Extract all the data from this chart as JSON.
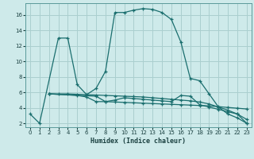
{
  "bg_color": "#ceeaea",
  "grid_color": "#aacfcf",
  "line_color": "#1a6e6e",
  "xlabel": "Humidex (Indice chaleur)",
  "xlim": [
    -0.5,
    23.5
  ],
  "ylim": [
    1.5,
    17.5
  ],
  "yticks": [
    2,
    4,
    6,
    8,
    10,
    12,
    14,
    16
  ],
  "xticks": [
    0,
    1,
    2,
    3,
    4,
    5,
    6,
    7,
    8,
    9,
    10,
    11,
    12,
    13,
    14,
    15,
    16,
    17,
    18,
    19,
    20,
    21,
    22,
    23
  ],
  "lines": [
    {
      "x": [
        0,
        1,
        3,
        4,
        5,
        6,
        7,
        8,
        9,
        10,
        11,
        12,
        13,
        14,
        15,
        16,
        17,
        18,
        19,
        20,
        21,
        22,
        23
      ],
      "y": [
        3.2,
        2.0,
        13.0,
        13.0,
        7.0,
        5.7,
        6.5,
        8.7,
        16.3,
        16.3,
        16.6,
        16.8,
        16.7,
        16.3,
        15.4,
        12.5,
        7.8,
        7.5,
        5.8,
        4.1,
        3.2,
        2.7,
        2.0
      ]
    },
    {
      "x": [
        2,
        3,
        4,
        5,
        6,
        7,
        8,
        9,
        10,
        11,
        12,
        13,
        14,
        15,
        16,
        17,
        18,
        19,
        20,
        21,
        22,
        23
      ],
      "y": [
        5.8,
        5.8,
        5.8,
        5.75,
        5.7,
        5.65,
        5.6,
        5.55,
        5.5,
        5.45,
        5.4,
        5.3,
        5.2,
        5.1,
        5.0,
        4.9,
        4.75,
        4.5,
        4.1,
        3.7,
        3.2,
        2.5
      ]
    },
    {
      "x": [
        2,
        5,
        6,
        7,
        8,
        9,
        10,
        11,
        12,
        13,
        14,
        15,
        16,
        17,
        18,
        19,
        20,
        21,
        22,
        23
      ],
      "y": [
        5.8,
        5.6,
        5.4,
        4.8,
        4.8,
        4.75,
        4.7,
        4.65,
        4.6,
        4.55,
        4.5,
        4.45,
        4.4,
        4.35,
        4.3,
        4.25,
        4.15,
        4.05,
        3.95,
        3.85
      ]
    },
    {
      "x": [
        2,
        7,
        8,
        9,
        10,
        11,
        12,
        13,
        14,
        15,
        16,
        17,
        18,
        19,
        20,
        21,
        22,
        23
      ],
      "y": [
        5.8,
        5.5,
        4.8,
        5.0,
        5.3,
        5.2,
        5.1,
        5.0,
        4.9,
        4.8,
        5.6,
        5.5,
        4.4,
        4.1,
        3.8,
        3.5,
        3.2,
        2.0
      ]
    }
  ]
}
